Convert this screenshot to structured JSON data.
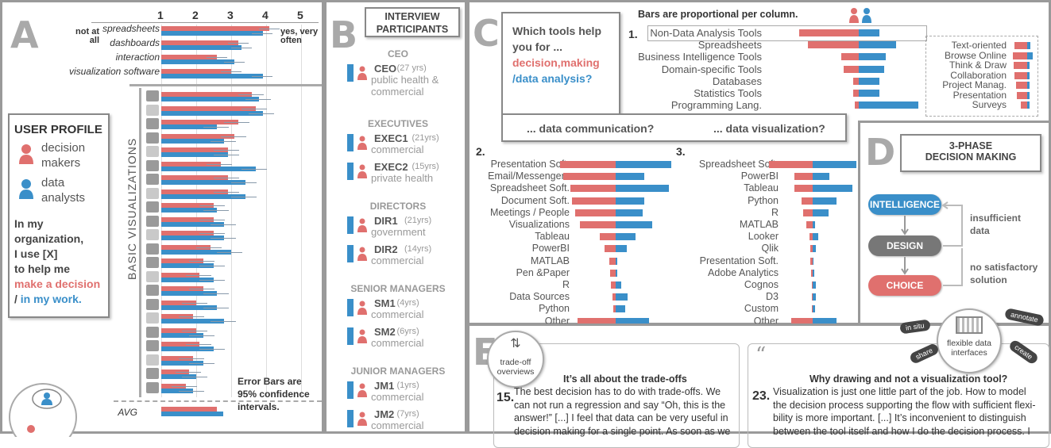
{
  "panel_a": {
    "letter": "A",
    "scale_ticks": [
      "1",
      "2",
      "3",
      "4",
      "5"
    ],
    "scale_left": "not at all",
    "scale_right": "yes, very often",
    "top_items": [
      "spreadsheets",
      "dashboards",
      "interaction",
      "visualization software"
    ],
    "user_profile_title": "USER PROFILE",
    "legend_dm": "decision makers",
    "legend_da": "data analysts",
    "question_1": "In my organization,",
    "question_2": "I use [X]",
    "question_3": "to help me",
    "question_red": "make a decision",
    "question_slash": "/",
    "question_blue": "in my work.",
    "basic_viz_label": "BASIC VISUALIZATIONS",
    "avg_label": "AVG",
    "error_note": "Error Bars are 95% confidence intervals."
  },
  "panel_b": {
    "letter": "B",
    "title": "INTERVIEW PARTICIPANTS",
    "groups": [
      {
        "heading": "CEO",
        "people": [
          {
            "id": "CEO",
            "yrs": "(27 yrs)",
            "field": "public health & commercial"
          }
        ]
      },
      {
        "heading": "EXECUTIVES",
        "people": [
          {
            "id": "EXEC1",
            "yrs": "(21yrs)",
            "field": "commercial"
          },
          {
            "id": "EXEC2",
            "yrs": "(15yrs)",
            "field": "private health"
          }
        ]
      },
      {
        "heading": "DIRECTORS",
        "people": [
          {
            "id": "DIR1",
            "yrs": "(21yrs)",
            "field": "government"
          },
          {
            "id": "DIR2",
            "yrs": "(14yrs)",
            "field": "commercial"
          }
        ]
      },
      {
        "heading": "SENIOR MANAGERS",
        "people": [
          {
            "id": "SM1",
            "yrs": "(4yrs)",
            "field": "commercial"
          },
          {
            "id": "SM2",
            "yrs": "(6yrs)",
            "field": "commercial"
          }
        ]
      },
      {
        "heading": "JUNIOR MANAGERS",
        "people": [
          {
            "id": "JM1",
            "yrs": "(1yrs)",
            "field": "commercial"
          },
          {
            "id": "JM2",
            "yrs": "(7yrs)",
            "field": "commercial"
          }
        ]
      }
    ]
  },
  "panel_c": {
    "letter": "C",
    "question_1": "Which tools help",
    "question_2": "you for ...",
    "question_red": "decision,making",
    "question_blue": "/data analysis?",
    "proportional_note": "Bars are proportional per column.",
    "comm_question": "... data communication?",
    "vis_question": "... data visualization?",
    "section1_num": "1.",
    "section2_num": "2.",
    "section3_num": "3.",
    "tools1": [
      {
        "label": "Non-Data Analysis Tools",
        "r": 1.0,
        "b": 0.35
      },
      {
        "label": "Spreadsheets",
        "r": 0.85,
        "b": 0.62
      },
      {
        "label": "Business Intelligence Tools",
        "r": 0.3,
        "b": 0.45
      },
      {
        "label": "Domain-specific Tools",
        "r": 0.25,
        "b": 0.42
      },
      {
        "label": "Databases",
        "r": 0.1,
        "b": 0.34
      },
      {
        "label": "Statistics Tools",
        "r": 0.1,
        "b": 0.35
      },
      {
        "label": "Programming Lang.",
        "r": 0.07,
        "b": 1.0
      }
    ],
    "tools1b": [
      {
        "label": "Text-oriented",
        "r": 0.6,
        "b": 0.15
      },
      {
        "label": "Browse Online",
        "r": 0.7,
        "b": 0.25
      },
      {
        "label": "Think & Draw",
        "r": 0.65,
        "b": 0.1
      },
      {
        "label": "Collaboration",
        "r": 0.6,
        "b": 0.1
      },
      {
        "label": "Project Manag.",
        "r": 0.55,
        "b": 0.1
      },
      {
        "label": "Presentation",
        "r": 0.5,
        "b": 0.1
      },
      {
        "label": "Surveys",
        "r": 0.3,
        "b": 0.1
      }
    ],
    "tools2": [
      {
        "label": "Presentation Soft.",
        "r": 1.0,
        "b": 1.0
      },
      {
        "label": "Email/Messengers",
        "r": 0.95,
        "b": 0.52
      },
      {
        "label": "Spreadsheet Soft.",
        "r": 0.82,
        "b": 0.96
      },
      {
        "label": "Document Soft.",
        "r": 0.78,
        "b": 0.52
      },
      {
        "label": "Meetings / People",
        "r": 0.73,
        "b": 0.48
      },
      {
        "label": "Visualizations",
        "r": 0.65,
        "b": 0.65
      },
      {
        "label": "Tableau",
        "r": 0.28,
        "b": 0.35
      },
      {
        "label": "PowerBI",
        "r": 0.2,
        "b": 0.2
      },
      {
        "label": "MATLAB",
        "r": 0.12,
        "b": 0.03
      },
      {
        "label": "Pen &Paper",
        "r": 0.1,
        "b": 0.03
      },
      {
        "label": "R",
        "r": 0.08,
        "b": 0.1
      },
      {
        "label": "Data Sources",
        "r": 0.06,
        "b": 0.22
      },
      {
        "label": "Python",
        "r": 0.05,
        "b": 0.17
      },
      {
        "label": "Other",
        "r": 0.68,
        "b": 0.6
      }
    ],
    "tools3": [
      {
        "label": "Spreadsheet Soft.",
        "r": 1.0,
        "b": 1.0
      },
      {
        "label": "PowerBI",
        "r": 0.42,
        "b": 0.38
      },
      {
        "label": "Tableau",
        "r": 0.42,
        "b": 0.9
      },
      {
        "label": "Python",
        "r": 0.25,
        "b": 0.55
      },
      {
        "label": "R",
        "r": 0.22,
        "b": 0.36
      },
      {
        "label": "MATLAB",
        "r": 0.15,
        "b": 0.05
      },
      {
        "label": "Looker",
        "r": 0.08,
        "b": 0.12
      },
      {
        "label": "Qlik",
        "r": 0.05,
        "b": 0.08
      },
      {
        "label": "Presentation Soft.",
        "r": 0.05,
        "b": 0.02
      },
      {
        "label": "Adobe Analytics",
        "r": 0.04,
        "b": 0.03
      },
      {
        "label": "Cognos",
        "r": 0.02,
        "b": 0.08
      },
      {
        "label": "D3",
        "r": 0.02,
        "b": 0.08
      },
      {
        "label": "Custom",
        "r": 0.02,
        "b": 0.05
      },
      {
        "label": "Other",
        "r": 0.5,
        "b": 0.55
      }
    ]
  },
  "panel_d": {
    "letter": "D",
    "title_1": "3-PHASE",
    "title_2": "DECISION MAKING",
    "phase_intelligence": "INTELLIGENCE",
    "phase_design": "DESIGN",
    "phase_choice": "CHOICE",
    "loop1_1": "insufficient",
    "loop1_2": "data",
    "loop2_1": "no satisfactory",
    "loop2_2": "solution"
  },
  "panel_e": {
    "letter": "E",
    "tradeoff_label_1": "trade-off",
    "tradeoff_label_2": "overviews",
    "flex_label_1": "flexible data",
    "flex_label_2": "interfaces",
    "tag_insitu": "in situ",
    "tag_annotate": "annotate",
    "tag_share": "share",
    "tag_create": "create",
    "quote_mark": "“",
    "q15_title": "It’s all about the trade-offs",
    "q15_num": "15.",
    "q15_lines": [
      "The best decision has to do with trade-offs. We",
      "can not run a regression and say “Oh, this is the",
      "answer!” [...] I feel that data can be very useful in",
      "decision making for a single point. As soon as we"
    ],
    "q23_title": "Why drawing and not a visualization tool?",
    "q23_num": "23.",
    "q23_lines": [
      "Visualization is just one little part of the job. How to model",
      "the decision process  supporting the flow with sufficient flexi-",
      "bility is more important. [...] It’s inconvenient  to distinguish",
      "between the  tool  itself and how I do the decision process. I"
    ]
  },
  "colors": {
    "red": "#e0706e",
    "blue": "#3a8fc9",
    "grey": "#9a9a9a"
  }
}
